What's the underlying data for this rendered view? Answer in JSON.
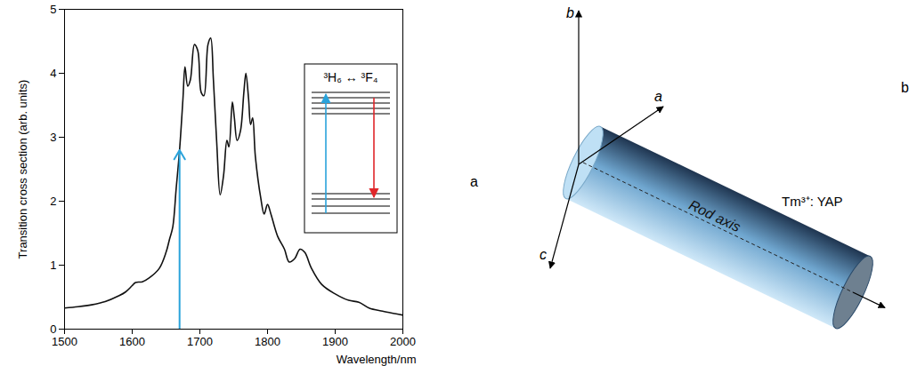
{
  "chart_data": {
    "type": "line",
    "xlabel": "Wavelength/nm",
    "ylabel": "Transition cross section (arb. units)",
    "xlim": [
      1500,
      2000
    ],
    "xticks": [
      1500,
      1600,
      1700,
      1800,
      1900,
      2000
    ],
    "ylim": [
      0,
      5
    ],
    "yticks": [
      0,
      1,
      2,
      3,
      4,
      5
    ],
    "color": "#111111",
    "x": [
      1500,
      1520,
      1540,
      1560,
      1580,
      1590,
      1600,
      1605,
      1615,
      1625,
      1640,
      1650,
      1655,
      1660,
      1665,
      1670,
      1675,
      1678,
      1682,
      1686,
      1692,
      1697,
      1702,
      1706,
      1712,
      1716,
      1720,
      1725,
      1730,
      1735,
      1740,
      1743,
      1748,
      1751,
      1755,
      1760,
      1765,
      1768,
      1772,
      1775,
      1778,
      1782,
      1790,
      1795,
      1800,
      1805,
      1815,
      1825,
      1832,
      1840,
      1848,
      1855,
      1865,
      1880,
      1900,
      1920,
      1935,
      1950,
      1970,
      1990,
      2000
    ],
    "values": [
      0.33,
      0.35,
      0.38,
      0.43,
      0.52,
      0.58,
      0.68,
      0.73,
      0.74,
      0.8,
      0.95,
      1.2,
      1.4,
      1.6,
      2.2,
      2.8,
      3.6,
      4.1,
      3.8,
      3.9,
      4.45,
      4.35,
      3.7,
      3.65,
      4.45,
      4.55,
      3.9,
      2.9,
      2.1,
      2.4,
      2.95,
      2.85,
      3.55,
      3.3,
      2.95,
      3.1,
      3.7,
      4.0,
      3.6,
      3.2,
      3.3,
      2.7,
      2.05,
      1.8,
      1.95,
      1.8,
      1.45,
      1.25,
      1.05,
      1.1,
      1.25,
      1.2,
      0.95,
      0.7,
      0.55,
      0.45,
      0.42,
      0.33,
      0.28,
      0.24,
      0.22
    ],
    "arrow": {
      "x": 1670,
      "y1": 0,
      "y2": 2.8,
      "color": "#2aa3db"
    },
    "inset_label": "³H₆ ↔ ³F₄"
  },
  "panel_labels": [
    "a",
    "b"
  ],
  "diagram": {
    "axes": [
      "a",
      "b",
      "c"
    ],
    "crystal": "Tm³⁺: YAP",
    "rod_label": "Rod axis"
  }
}
